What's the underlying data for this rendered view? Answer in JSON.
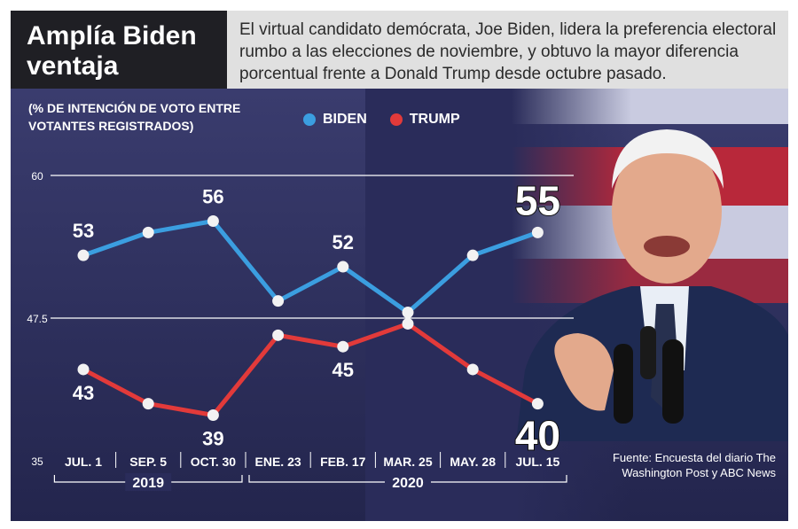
{
  "header": {
    "title": "Amplía Biden ventaja",
    "subtitle": "El virtual candidato demócrata, Joe Biden, lidera la preferencia electoral rumbo a las elecciones de noviembre, y obtuvo la mayor diferencia porcentual frente a Donald Trump desde octubre pasado."
  },
  "source": "Fuente: Encuesta del diario The Washington Post y ABC News",
  "colors": {
    "biden": "#3b9ee0",
    "trump": "#e23a3a",
    "background": "#2a2c5a"
  },
  "chart_data": {
    "type": "line",
    "ylabel": "(% DE INTENCIÓN DE VOTO ENTRE VOTANTES REGISTRADOS)",
    "categories": [
      "JUL. 1",
      "SEP. 5",
      "OCT. 30",
      "ENE. 23",
      "FEB. 17",
      "MAR. 25",
      "MAY. 28",
      "JUL. 15"
    ],
    "year_groups": [
      {
        "label": "2019",
        "from": 0,
        "to": 2
      },
      {
        "label": "2020",
        "from": 3,
        "to": 7
      }
    ],
    "yticks": [
      "60",
      "47.5",
      "35"
    ],
    "ylim": [
      35,
      60
    ],
    "grid": "horizontal lines at 60 and 47.5",
    "legend": "top-center",
    "series": [
      {
        "name": "BIDEN",
        "values": [
          53,
          55,
          56,
          49,
          52,
          48,
          53,
          55
        ],
        "labels": [
          {
            "index": 0,
            "text": "53"
          },
          {
            "index": 2,
            "text": "56"
          },
          {
            "index": 4,
            "text": "52"
          },
          {
            "index": 7,
            "text": "55"
          }
        ]
      },
      {
        "name": "TRUMP",
        "values": [
          43,
          40,
          39,
          46,
          45,
          47,
          43,
          40
        ],
        "labels": [
          {
            "index": 0,
            "text": "43"
          },
          {
            "index": 2,
            "text": "39"
          },
          {
            "index": 4,
            "text": "45"
          },
          {
            "index": 7,
            "text": "40"
          }
        ]
      }
    ]
  }
}
